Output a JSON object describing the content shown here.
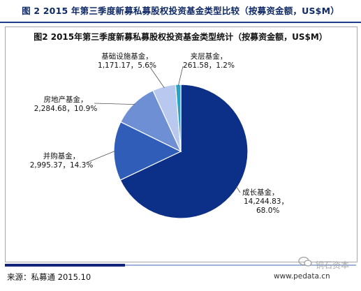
{
  "figure_title": "图 2 2015 年第三季度新募私募股权投资基金类型比较（按募资金额，US$M）",
  "source": "来源：私募通 2015.10",
  "watermark": {
    "name": "铜石资本",
    "site": "www.pedata.cn"
  },
  "chart_data": {
    "type": "pie",
    "title": "图2 2015年第三季度新募私募股权投资基金类型统计（按募资金额，US$M）",
    "start_angle_deg": -90,
    "direction": "clockwise",
    "slices": [
      {
        "name": "成长基金",
        "value": 14244.83,
        "value_text": "14,244.83",
        "percent": "68.0%",
        "color": "#0c2f87"
      },
      {
        "name": "并购基金",
        "value": 2995.37,
        "value_text": "2,995.37",
        "percent": "14.3%",
        "color": "#2f5db8"
      },
      {
        "name": "房地产基金",
        "value": 2284.68,
        "value_text": "2,284.68",
        "percent": "10.9%",
        "color": "#6e8fd4"
      },
      {
        "name": "基础设施基金",
        "value": 1171.17,
        "value_text": "1,171.17",
        "percent": "5.6%",
        "color": "#b8c8ee"
      },
      {
        "name": "夹层基金",
        "value": 261.58,
        "value_text": "261.58",
        "percent": "1.2%",
        "color": "#27a3c4"
      }
    ]
  }
}
